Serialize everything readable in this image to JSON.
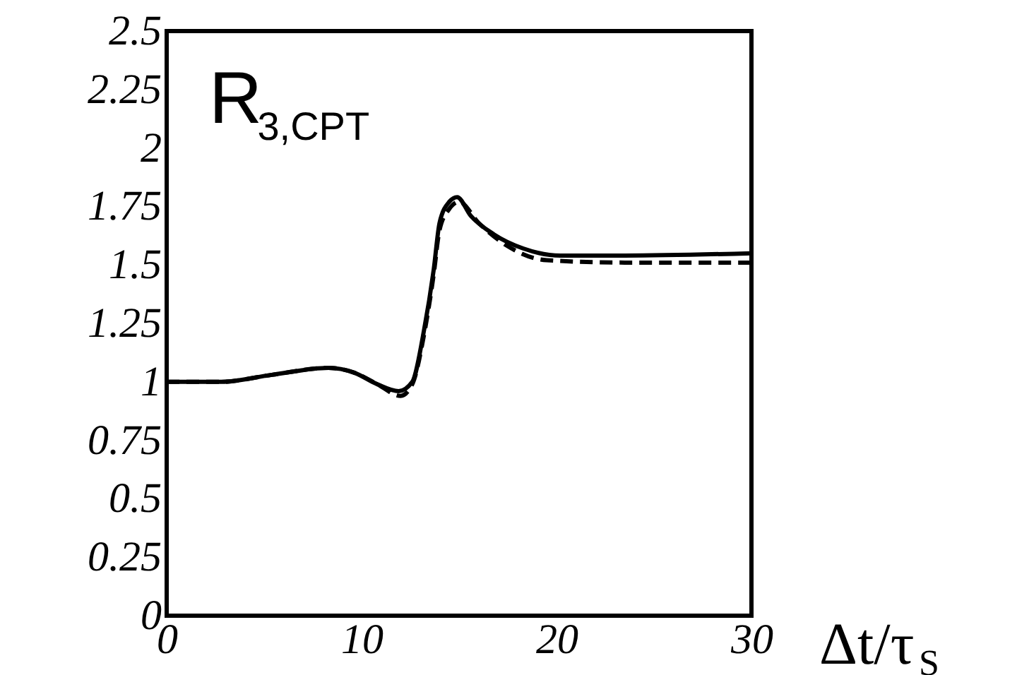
{
  "chart_data": {
    "type": "line",
    "xlabel": "Δt/τ$_{S}$",
    "annotations": [
      "R$_{3,CPT}$"
    ],
    "xlim": [
      0,
      30
    ],
    "xticks": [
      0,
      10,
      20,
      30
    ],
    "ylim": [
      0,
      2.5
    ],
    "yticks": [
      0,
      0.25,
      0.5,
      0.75,
      1,
      1.25,
      1.5,
      1.75,
      2,
      2.25,
      2.5
    ],
    "grid": false,
    "series": [
      {
        "color": "#000000",
        "line_style": "solid",
        "x": [
          0,
          2.8,
          5.4,
          8.3,
          9.6,
          10.8,
          11.9,
          12.6,
          13.2,
          13.7,
          14.0,
          14.5,
          14.9,
          15.6,
          16.8,
          18.3,
          20.2,
          23.5,
          30
        ],
        "values": [
          1.0,
          1.0,
          1.03,
          1.06,
          1.04,
          0.99,
          0.96,
          1.0,
          1.22,
          1.48,
          1.68,
          1.77,
          1.79,
          1.71,
          1.63,
          1.57,
          1.54,
          1.54,
          1.55
        ]
      },
      {
        "color": "#000000",
        "line_style": "dashed",
        "x": [
          0,
          2.8,
          5.4,
          8.3,
          9.6,
          10.8,
          12.0,
          12.6,
          13.2,
          13.7,
          14.0,
          14.5,
          15.0,
          16.0,
          17.5,
          19.5,
          23.5,
          30
        ],
        "values": [
          1.0,
          1.0,
          1.03,
          1.06,
          1.04,
          0.99,
          0.94,
          0.99,
          1.2,
          1.46,
          1.65,
          1.74,
          1.77,
          1.68,
          1.58,
          1.52,
          1.51,
          1.51
        ]
      }
    ]
  }
}
